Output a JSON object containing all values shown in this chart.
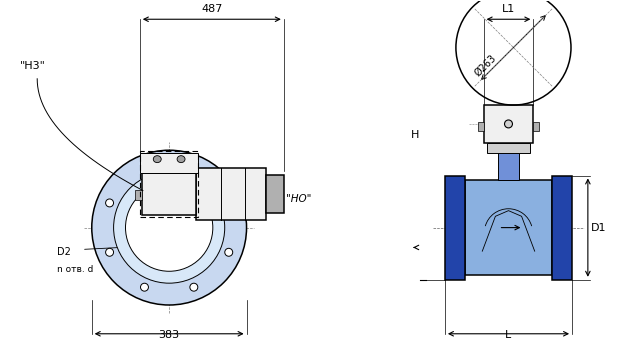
{
  "bg_color": "#ffffff",
  "line_color": "#000000",
  "blue_light": "#c8d8f0",
  "blue_mid": "#8ab0e0",
  "blue_dark": "#2244aa",
  "blue_neck": "#7090d8",
  "gray_light": "#f0f0f0",
  "gray_mid": "#b0b0b0",
  "gray_dark": "#606060",
  "annotations": {
    "dim_487": "487",
    "dim_383": "383",
    "dim_L1": "L1",
    "dim_L": "L",
    "dim_H": "H",
    "dim_D1": "D1",
    "dim_D2": "D2",
    "dim_d263": "Ø263",
    "label_HZ": "\"H3\"",
    "label_HO": "\"HO\"",
    "label_n": "n отв. d"
  }
}
